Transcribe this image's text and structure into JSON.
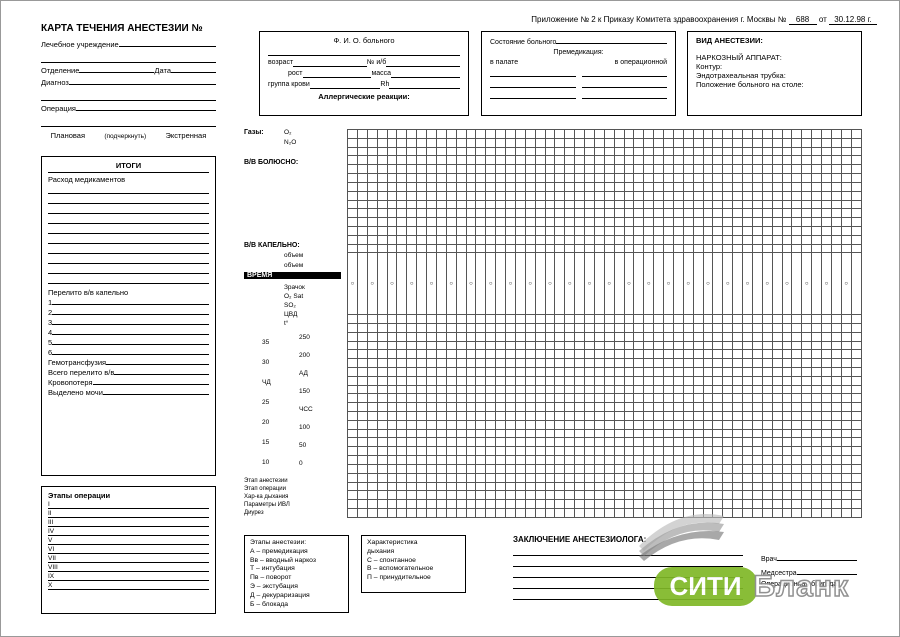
{
  "appendix": {
    "text": "Приложение № 2 к Приказу Комитета здравоохранения г. Москвы №",
    "order_no": "688",
    "from": "от",
    "date": "30.12.98 г."
  },
  "title": "КАРТА ТЕЧЕНИЯ АНЕСТЕЗИИ №",
  "left_info": {
    "institution": "Лечебное учреждение",
    "dept": "Отделение",
    "date": "Дата",
    "diagnosis": "Диагноз",
    "operation": "Операция",
    "planned": "Плановая",
    "underline": "(подчеркнуть)",
    "emergency": "Экстренная"
  },
  "patient_box": {
    "fio": "Ф. И. О. больного",
    "age": "возраст",
    "histno": "№ и/б",
    "height": "рост",
    "weight": "масса",
    "blood": "группа крови",
    "rh": "Rh",
    "allergy": "Аллергические реакции:"
  },
  "state_box": {
    "state": "Состояние больного",
    "premed": "Премедикация:",
    "ward": "в палате",
    "opr": "в операционной"
  },
  "atype_box": {
    "title": "ВИД АНЕСТЕЗИИ:",
    "apparatus": "НАРКОЗНЫЙ АППАРАТ:",
    "contour": "Контур:",
    "tube": "Эндотрахеальная трубка:",
    "position": "Положение больного на столе:"
  },
  "itogi": {
    "title": "ИТОГИ",
    "meds": "Расход медикаментов",
    "drip": "Перелито в/в капельно",
    "nums": [
      "1",
      "2",
      "3",
      "4",
      "5",
      "6"
    ],
    "hemo": "Гемотрансфузия",
    "total_iv": "Всего перелито в/в",
    "bloodloss": "Кровопотеря",
    "urine": "Выделено мочи"
  },
  "stages": {
    "title": "Этапы операции",
    "nums": [
      "I",
      "II",
      "III",
      "IV",
      "V",
      "VI",
      "VII",
      "VIII",
      "IX",
      "X"
    ]
  },
  "grid": {
    "rows": 38,
    "cols": 52,
    "circle_row": 14,
    "gases": "Газы:",
    "gas_labels": [
      "O₂",
      "N₂O"
    ],
    "bolus": "В/В БОЛЮСНО:",
    "drip_sec": "В/В КАПЕЛЬНО:",
    "drip_labels": [
      "объем",
      "объем"
    ],
    "time": "ВРЕМЯ",
    "time_labels": [
      "Зрачок",
      "O₂ Sat",
      "SO₂",
      "ЦВД",
      "t°"
    ],
    "vitals_left": [
      "35",
      "30",
      "ЧД",
      "25",
      "20",
      "15",
      "10"
    ],
    "vitals_right": [
      "250",
      "200",
      "АД",
      "150",
      "ЧСС",
      "100",
      "50",
      "0"
    ],
    "bottom_rows": [
      "Этап анестезии",
      "Этап операции",
      "Хар-ка дыхания",
      "Параметры ИВЛ",
      "Диурез"
    ]
  },
  "legend1": {
    "title": "Этапы анестезии:",
    "items": [
      "А – премедикация",
      "Вв – вводный наркоз",
      "Т – интубация",
      "Пв – поворот",
      "Э – экстубация",
      "Д – декураризация",
      "Б – блокада"
    ]
  },
  "legend2": {
    "title": "Характеристика",
    "sub": "дыхания",
    "items": [
      "С – спонтанное",
      "В – вспомогательное",
      "П – принудительное"
    ]
  },
  "conclusion": "ЗАКЛЮЧЕНИЕ АНЕСТЕЗИОЛОГА:",
  "signatures": {
    "doctor": "Врач",
    "nurse": "Медсестра",
    "team": "Операционная бригада:"
  },
  "watermark": {
    "badge": "СИТИ",
    "text": "Бланк"
  },
  "colors": {
    "text": "#000000",
    "grid": "#555555",
    "wm_badge": "#7fb827",
    "wm_stroke": "#888888"
  }
}
